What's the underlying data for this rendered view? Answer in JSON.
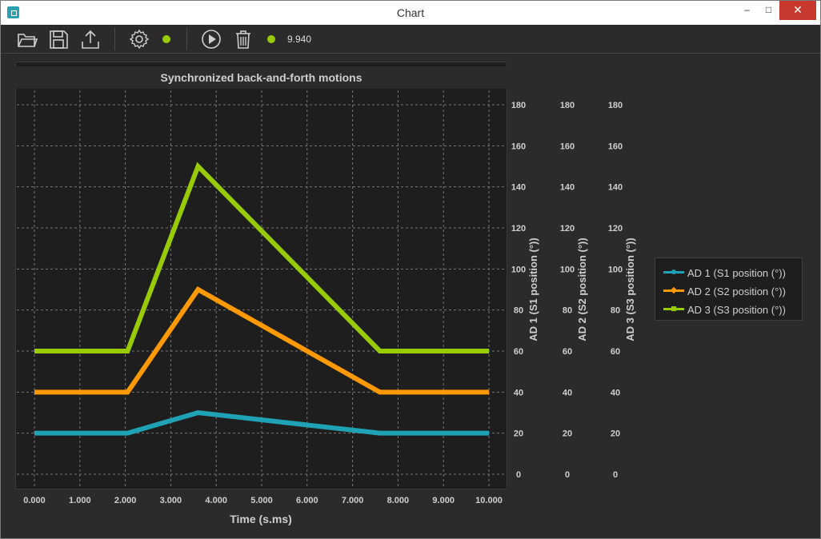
{
  "window": {
    "title": "Chart",
    "minimize": "–",
    "maximize": "□",
    "close": "✕"
  },
  "toolbar": {
    "items": [
      {
        "name": "open-folder-icon"
      },
      {
        "name": "save-icon"
      },
      {
        "name": "export-icon"
      },
      {
        "name": "settings-icon"
      },
      {
        "name": "play-icon"
      },
      {
        "name": "trash-icon"
      }
    ],
    "status_color": "#97cc04",
    "readout": "9.940"
  },
  "chart_data": {
    "type": "line",
    "title": "Synchronized back-and-forth motions",
    "xlabel": "Time (s.ms)",
    "xlim": [
      0,
      10
    ],
    "x_ticks": [
      "0.000",
      "1.000",
      "2.000",
      "3.000",
      "4.000",
      "5.000",
      "6.000",
      "7.000",
      "8.000",
      "9.000",
      "10.000"
    ],
    "y_axes": [
      {
        "label": "AD 1 (S1 position (°))",
        "ylim": [
          0,
          180
        ],
        "ticks": [
          "0",
          "20",
          "40",
          "60",
          "80",
          "100",
          "120",
          "140",
          "160",
          "180"
        ]
      },
      {
        "label": "AD 2 (S2 position (°))",
        "ylim": [
          0,
          180
        ],
        "ticks": [
          "0",
          "20",
          "40",
          "60",
          "80",
          "100",
          "120",
          "140",
          "160",
          "180"
        ]
      },
      {
        "label": "AD 3 (S3 position (°))",
        "ylim": [
          0,
          180
        ],
        "ticks": [
          "0",
          "20",
          "40",
          "60",
          "80",
          "100",
          "120",
          "140",
          "160",
          "180"
        ]
      }
    ],
    "grid": true,
    "legend_position": "right",
    "series": [
      {
        "name": "AD 1 (S1 position (°))",
        "color": "#1fa2b4",
        "marker": "circle",
        "x": [
          0,
          2.05,
          3.6,
          7.6,
          10
        ],
        "y": [
          20,
          20,
          30,
          20,
          20
        ]
      },
      {
        "name": "AD 2 (S2 position (°))",
        "color": "#ff9900",
        "marker": "diamond",
        "x": [
          0,
          2.05,
          3.6,
          7.6,
          10
        ],
        "y": [
          40,
          40,
          90,
          40,
          40
        ]
      },
      {
        "name": "AD 3 (S3 position (°))",
        "color": "#97cc04",
        "marker": "square",
        "x": [
          0,
          2.05,
          3.6,
          7.6,
          10
        ],
        "y": [
          60,
          60,
          150,
          60,
          60
        ]
      }
    ]
  }
}
